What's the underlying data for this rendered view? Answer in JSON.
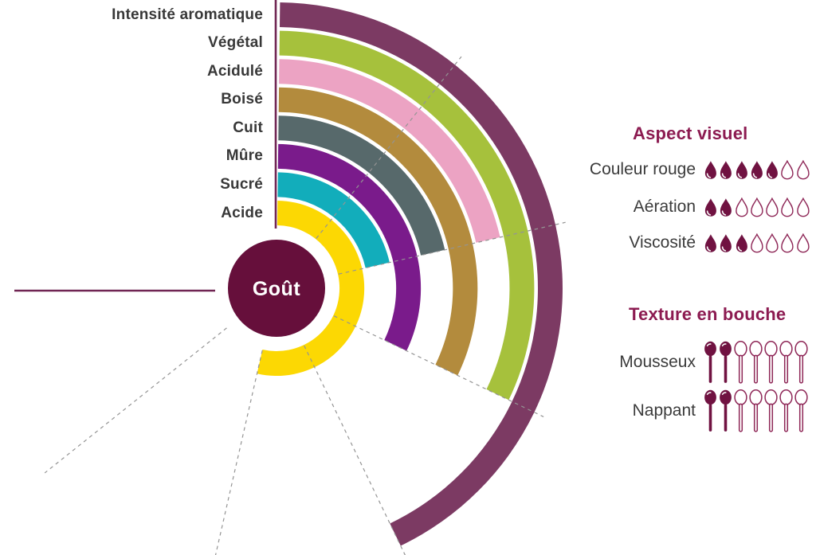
{
  "chart_data": {
    "type": "radial_bar",
    "title": "",
    "center_label": "Goût",
    "legend_position": "left-of-rings",
    "scale": {
      "min": 0,
      "max": 7,
      "total_angle_deg": 270,
      "start_angle_deg": 0,
      "direction": "clockwise-from-north"
    },
    "grid": {
      "dashed_unit_lines": [
        1,
        2,
        3,
        4,
        5,
        6
      ],
      "grid_on": true
    },
    "rings": [
      {
        "label": "Intensité aromatique",
        "value": 4,
        "color": "#7c3a63"
      },
      {
        "label": "Végétal",
        "value": 3,
        "color": "#a6c13c"
      },
      {
        "label": "Acidulé",
        "value": 2,
        "color": "#eca3c3"
      },
      {
        "label": "Boisé",
        "value": 3,
        "color": "#b38b3d"
      },
      {
        "label": "Cuit",
        "value": 2,
        "color": "#57696b"
      },
      {
        "label": "Mûre",
        "value": 3,
        "color": "#7a1b8b"
      },
      {
        "label": "Sucré",
        "value": 2,
        "color": "#12adbb"
      },
      {
        "label": "Acide",
        "value": 5,
        "color": "#fcd803"
      }
    ]
  },
  "panels": [
    {
      "title": "Aspect visuel",
      "icon": "drop",
      "rows": [
        {
          "label": "Couleur rouge",
          "filled": 5,
          "total": 7
        },
        {
          "label": "Aération",
          "filled": 2,
          "total": 7
        },
        {
          "label": "Viscosité",
          "filled": 3,
          "total": 7
        }
      ]
    },
    {
      "title": "Texture en bouche",
      "icon": "spoon",
      "rows": [
        {
          "label": "Mousseux",
          "filled": 2,
          "total": 7
        },
        {
          "label": "Nappant",
          "filled": 2,
          "total": 7
        }
      ]
    }
  ],
  "colors": {
    "heading": "#8c1b51",
    "row_text": "#3b3b3b",
    "icon_fill": "#701241",
    "icon_stroke": "#8e2757",
    "grid_line": "#949494",
    "axis_line": "#702553",
    "center_fill": "#660f3b",
    "center_text": "#ffffff",
    "background": "#ffffff"
  }
}
